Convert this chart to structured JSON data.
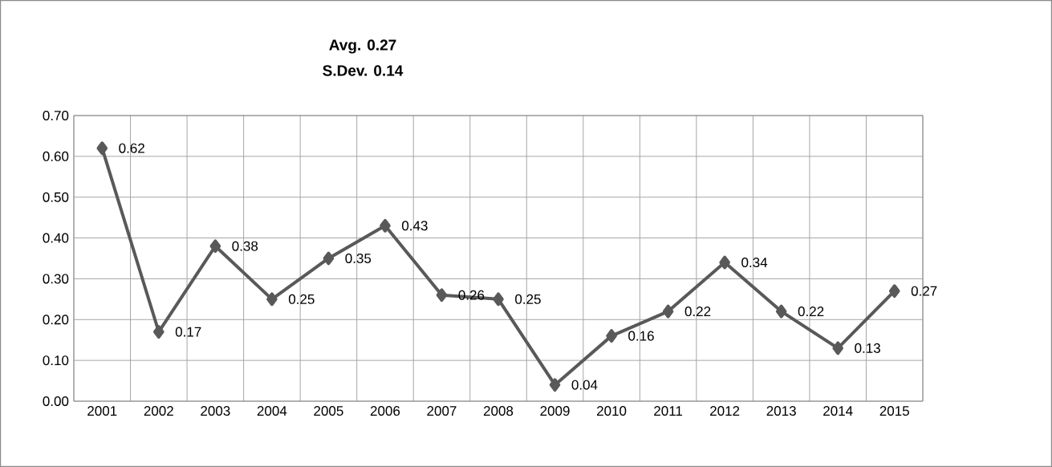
{
  "chart_data": {
    "type": "line",
    "categories": [
      "2001",
      "2002",
      "2003",
      "2004",
      "2005",
      "2006",
      "2007",
      "2008",
      "2009",
      "2010",
      "2011",
      "2012",
      "2013",
      "2014",
      "2015"
    ],
    "values": [
      0.62,
      0.17,
      0.38,
      0.25,
      0.35,
      0.43,
      0.26,
      0.25,
      0.04,
      0.16,
      0.22,
      0.34,
      0.22,
      0.13,
      0.27
    ],
    "color": "#595959",
    "marker": "diamond",
    "data_labels": true,
    "grid": true,
    "ylim": [
      0,
      0.7
    ],
    "yticks": [
      {
        "value": 0,
        "label": "0.00"
      },
      {
        "value": 0.1,
        "label": "0.10"
      },
      {
        "value": 0.2,
        "label": "0.20"
      },
      {
        "value": 0.3,
        "label": "0.30"
      },
      {
        "value": 0.4,
        "label": "0.40"
      },
      {
        "value": 0.5,
        "label": "0.50"
      },
      {
        "value": 0.6,
        "label": "0.60"
      },
      {
        "value": 0.7,
        "label": "0.70"
      }
    ],
    "annotations": [
      "Avg. 0.27",
      "S.Dev. 0.14"
    ]
  }
}
